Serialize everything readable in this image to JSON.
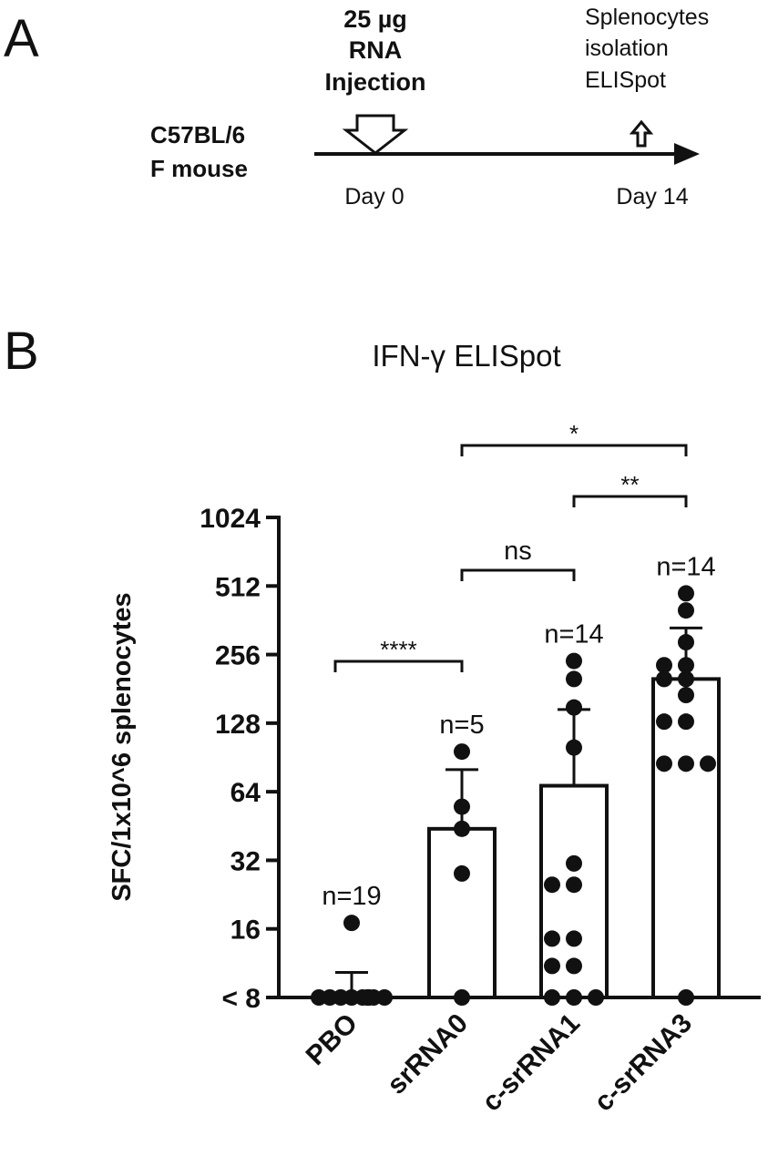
{
  "panel_a": {
    "letter": "A",
    "injection_label": [
      "25 µg",
      "RNA",
      "Injection"
    ],
    "readout_label": [
      "Splenocytes",
      "isolation",
      "ELISpot"
    ],
    "mouse_label": [
      "C57BL/6",
      "F mouse"
    ],
    "day_start": "Day 0",
    "day_end": "Day 14"
  },
  "panel_b": {
    "letter": "B"
  },
  "colors": {
    "ink": "#111111",
    "bar_fill": "#ffffff"
  },
  "chart_data": {
    "type": "bar",
    "title": "IFN-γ ELISpot",
    "ylabel": "SFC/1x10^6 splenocytes",
    "xlabel": "",
    "y_scale": "log2",
    "ylim": [
      8,
      1024
    ],
    "y_ticks": [
      {
        "value": 8,
        "label": "< 8"
      },
      {
        "value": 16,
        "label": "16"
      },
      {
        "value": 32,
        "label": "32"
      },
      {
        "value": 64,
        "label": "64"
      },
      {
        "value": 128,
        "label": "128"
      },
      {
        "value": 256,
        "label": "256"
      },
      {
        "value": 512,
        "label": "512"
      },
      {
        "value": 1024,
        "label": "1024"
      }
    ],
    "categories": [
      "PBO",
      "srRNA0",
      "c-srRNA1",
      "c-srRNA3"
    ],
    "bars": [
      {
        "category": "PBO",
        "mean": 8,
        "error_upper": 10.3,
        "n_label": "n=19",
        "points": [
          8,
          8,
          8,
          8,
          8,
          8,
          8,
          8,
          8,
          8,
          8,
          8,
          8,
          8,
          8,
          8,
          8,
          8,
          17
        ]
      },
      {
        "category": "srRNA0",
        "mean": 44,
        "error_upper": 80,
        "n_label": "n=5",
        "points": [
          96,
          55,
          44,
          28,
          8
        ]
      },
      {
        "category": "c-srRNA1",
        "mean": 68,
        "error_upper": 147,
        "n_label": "n=14",
        "points": [
          240,
          200,
          150,
          100,
          31,
          25,
          25,
          14.5,
          14.5,
          11,
          11,
          8,
          8,
          8
        ]
      },
      {
        "category": "c-srRNA3",
        "mean": 200,
        "error_upper": 335,
        "n_label": "n=14",
        "points": [
          475,
          400,
          290,
          230,
          230,
          200,
          200,
          170,
          130,
          130,
          85,
          85,
          85,
          8
        ]
      }
    ],
    "significance": [
      {
        "from": "PBO",
        "to": "srRNA0",
        "label": "****"
      },
      {
        "from": "srRNA0",
        "to": "c-srRNA1",
        "label": "ns"
      },
      {
        "from": "c-srRNA1",
        "to": "c-srRNA3",
        "label": "**"
      },
      {
        "from": "srRNA0",
        "to": "c-srRNA3",
        "label": "*"
      }
    ]
  }
}
